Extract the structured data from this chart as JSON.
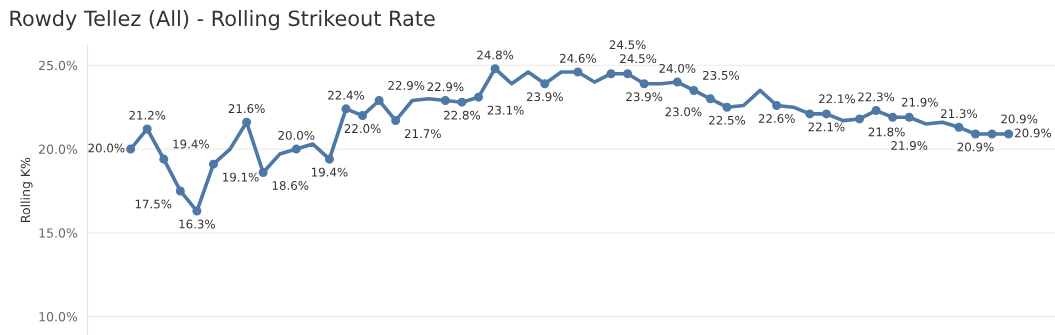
{
  "chart_data": {
    "type": "line",
    "title": "Rowdy Tellez (All) - Rolling Strikeout Rate",
    "ylabel": "Rolling K%",
    "categories": [
      null,
      null,
      null,
      null,
      null,
      null,
      null,
      null,
      null,
      null,
      null,
      null,
      null,
      null,
      null,
      null,
      null,
      null,
      null,
      null,
      null,
      null,
      null,
      null,
      null,
      null,
      null,
      null,
      null,
      null,
      null,
      null,
      null,
      null,
      null,
      null,
      null,
      null,
      null,
      null,
      null,
      null,
      null,
      null,
      null,
      null,
      null,
      null,
      null,
      null,
      null,
      null,
      null,
      null
    ],
    "series": [
      {
        "color": "#4e79a7",
        "values": [
          20.0,
          21.2,
          19.4,
          17.5,
          16.3,
          19.1,
          20.0,
          21.6,
          18.6,
          19.7,
          20.0,
          20.3,
          19.4,
          22.4,
          22.0,
          22.9,
          21.7,
          22.9,
          23.0,
          22.9,
          22.8,
          23.1,
          24.8,
          23.9,
          24.6,
          23.9,
          24.6,
          24.6,
          24.0,
          24.5,
          24.5,
          23.9,
          23.9,
          24.0,
          23.5,
          23.0,
          22.5,
          22.6,
          23.5,
          22.6,
          22.5,
          22.1,
          22.1,
          21.7,
          21.8,
          22.3,
          21.9,
          21.9,
          21.5,
          21.6,
          21.3,
          20.9,
          20.9,
          20.9
        ],
        "value_labels": [
          "20.0%",
          "21.2%",
          "19.4%",
          "17.5%",
          "16.3%",
          "19.1%",
          null,
          "21.6%",
          "18.6%",
          null,
          "20.0%",
          null,
          "19.4%",
          "22.4%",
          "22.0%",
          "22.9%",
          "21.7%",
          null,
          null,
          "22.9%",
          "22.8%",
          "23.1%",
          "24.8%",
          null,
          null,
          "23.9%",
          null,
          "24.6%",
          null,
          "24.5%",
          "24.5%",
          "23.9%",
          null,
          "24.0%",
          "23.5%",
          "23.0%",
          "22.5%",
          null,
          null,
          "22.6%",
          null,
          "22.1%",
          "22.1%",
          null,
          "21.8%",
          "22.3%",
          "21.9%",
          "21.9%",
          null,
          null,
          "21.3%",
          "20.9%",
          "20.9%",
          "20.9%"
        ]
      }
    ],
    "ylim": [
      8.9,
      26.2
    ],
    "yticks": [
      {
        "value": 10,
        "label": "10.0%"
      },
      {
        "value": 15,
        "label": "15.0%"
      },
      {
        "value": 20,
        "label": "20.0%"
      },
      {
        "value": 25,
        "label": "25.0%"
      }
    ],
    "tick_labels": "y",
    "grid": "y",
    "marker": "circle",
    "line_style": "solid"
  }
}
